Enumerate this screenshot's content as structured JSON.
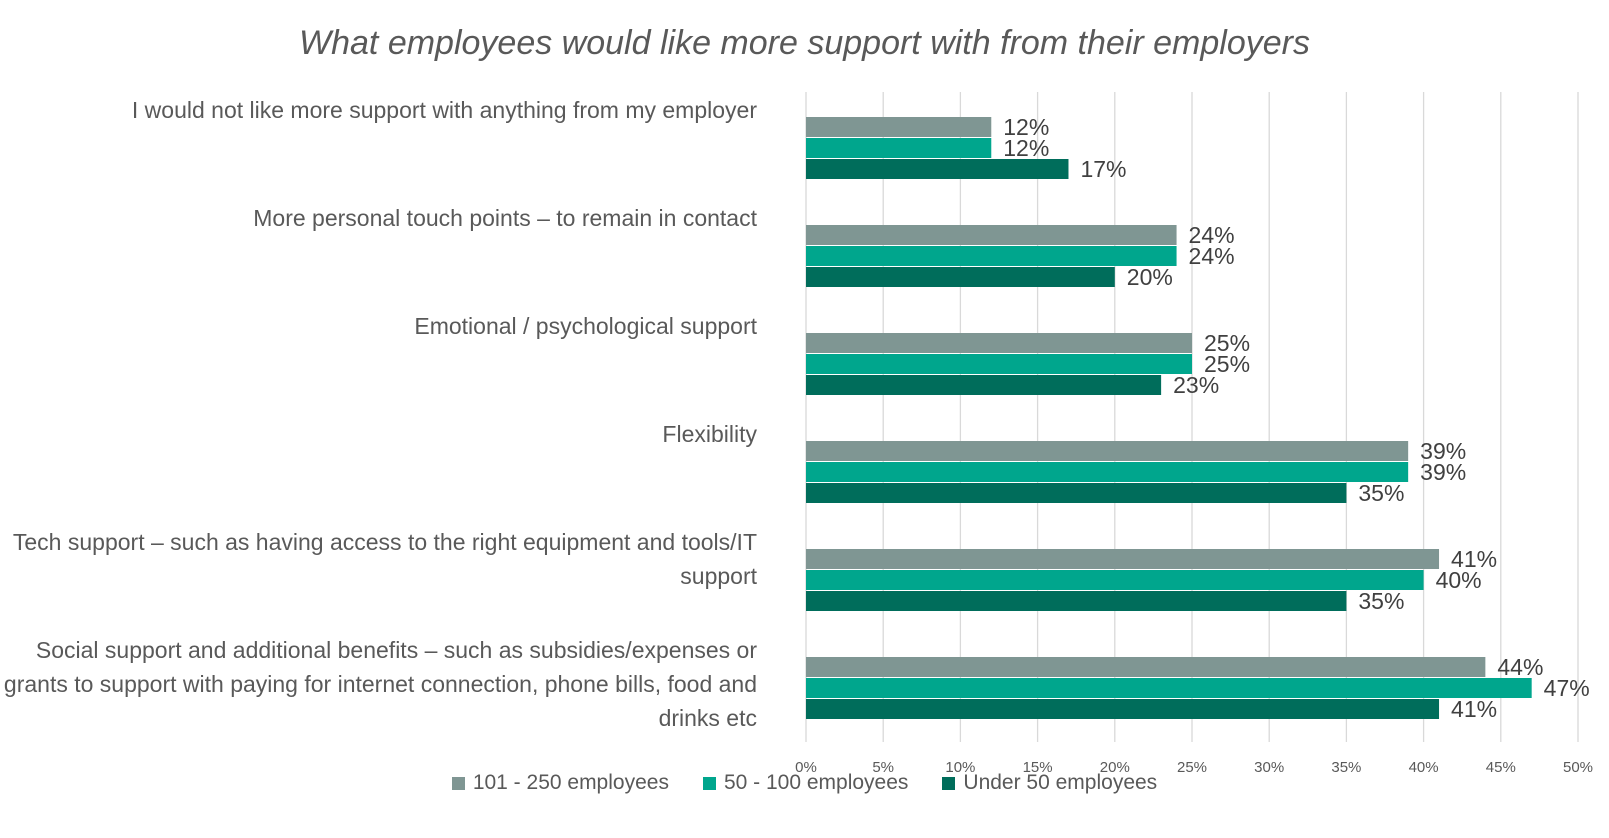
{
  "chart_data": {
    "type": "bar",
    "orientation": "horizontal",
    "title": "What employees would like more support with from their employers",
    "categories": [
      "I would not like more support with anything from my employer",
      "More personal touch points – to remain in contact",
      "Emotional / psychological support",
      "Flexibility",
      "Tech support – such as having access to the right equipment and tools/IT support",
      "Social support and additional benefits – such as subsidies/expenses or grants to support with paying for internet connection, phone bills, food and drinks etc"
    ],
    "series": [
      {
        "name": "101 - 250 employees",
        "color": "#7f9693",
        "values": [
          12,
          24,
          25,
          39,
          41,
          44
        ]
      },
      {
        "name": "50 - 100 employees",
        "color": "#00a68d",
        "values": [
          12,
          24,
          25,
          39,
          40,
          47
        ]
      },
      {
        "name": "Under 50 employees",
        "color": "#006d5b",
        "values": [
          17,
          20,
          23,
          35,
          35,
          41
        ]
      }
    ],
    "x_ticks": [
      "0%",
      "5%",
      "10%",
      "15%",
      "20%",
      "25%",
      "30%",
      "35%",
      "40%",
      "45%",
      "50%"
    ],
    "xlim": [
      0,
      50
    ],
    "value_suffix": "%",
    "grid": "vertical",
    "legend_position": "bottom"
  }
}
